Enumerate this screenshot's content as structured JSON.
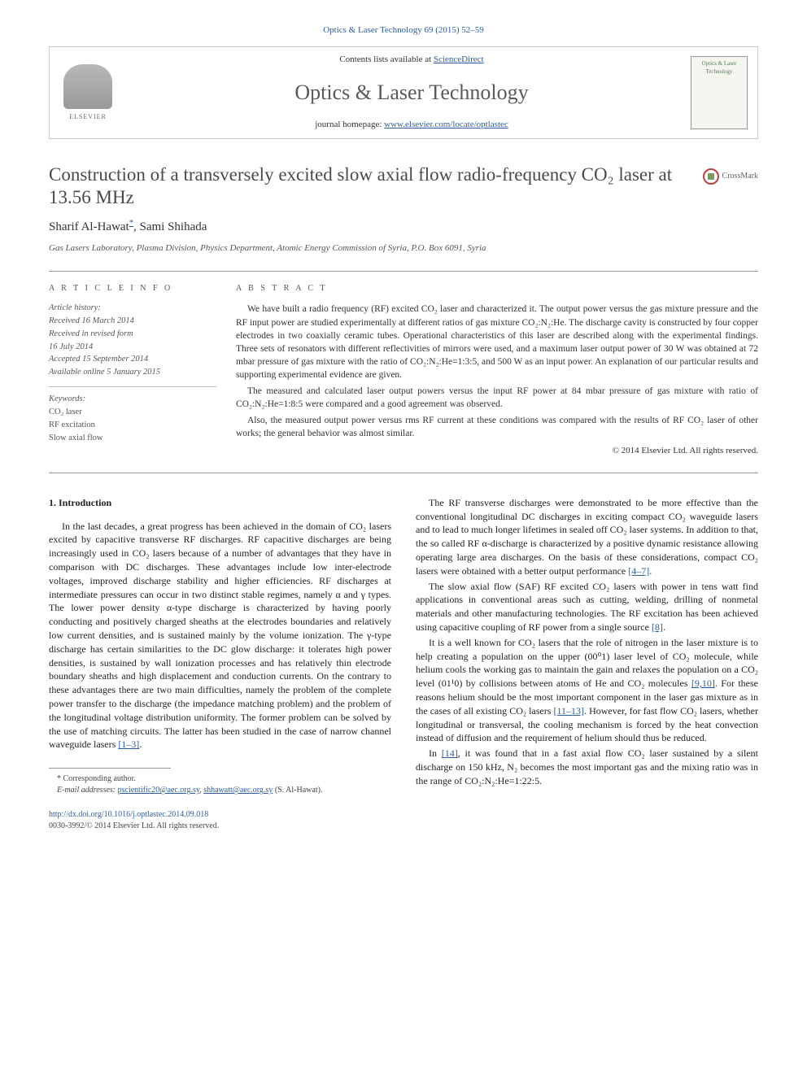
{
  "journal_ref": "Optics & Laser Technology 69 (2015) 52–59",
  "header": {
    "contents_prefix": "Contents lists available at ",
    "contents_link": "ScienceDirect",
    "journal_name": "Optics & Laser Technology",
    "homepage_prefix": "journal homepage: ",
    "homepage_link": "www.elsevier.com/locate/optlastec",
    "publisher": "ELSEVIER",
    "cover_text": "Optics & Laser Technology"
  },
  "crossmark": "CrossMark",
  "title": "Construction of a transversely excited slow axial flow radio-frequency CO₂ laser at 13.56 MHz",
  "authors": {
    "a1_name": "Sharif Al-Hawat",
    "a1_mark": "*",
    "sep": ", ",
    "a2_name": "Sami Shihada"
  },
  "affiliation": "Gas Lasers Laboratory, Plasma Division, Physics Department, Atomic Energy Commission of Syria, P.O. Box 6091, Syria",
  "meta": {
    "info_heading": "A R T I C L E   I N F O",
    "abstract_heading": "A B S T R A C T",
    "history_label": "Article history:",
    "history": {
      "received": "Received 16 March 2014",
      "revised1": "Received in revised form",
      "revised2": "16 July 2014",
      "accepted": "Accepted 15 September 2014",
      "online": "Available online 5 January 2015"
    },
    "keywords_label": "Keywords:",
    "keywords": {
      "k1": "CO₂ laser",
      "k2": "RF excitation",
      "k3": "Slow axial flow"
    }
  },
  "abstract": {
    "p1": "We have built a radio frequency (RF) excited CO₂ laser and characterized it. The output power versus the gas mixture pressure and the RF input power are studied experimentally at different ratios of gas mixture CO₂:N₂:He. The discharge cavity is constructed by four copper electrodes in two coaxially ceramic tubes. Operational characteristics of this laser are described along with the experimental findings. Three sets of resonators with different reflectivities of mirrors were used, and a maximum laser output power of 30 W was obtained at 72 mbar pressure of gas mixture with the ratio of CO₂:N₂:He=1:3:5, and 500 W as an input power. An explanation of our particular results and supporting experimental evidence are given.",
    "p2": "The measured and calculated laser output powers versus the input RF power at 84 mbar pressure of gas mixture with ratio of CO₂:N₂:He=1:8:5 were compared and a good agreement was observed.",
    "p3": "Also, the measured output power versus rms RF current at these conditions was compared with the results of RF CO₂ laser of other works; the general behavior was almost similar.",
    "copyright": "© 2014 Elsevier Ltd. All rights reserved."
  },
  "body": {
    "section_heading": "1.  Introduction",
    "p1a": "In the last decades, a great progress has been achieved in the domain of CO₂ lasers excited by capacitive transverse RF discharges. RF capacitive discharges are being increasingly used in CO₂ lasers because of a number of advantages that they have in comparison with DC discharges. These advantages include low inter-electrode voltages, improved discharge stability and higher efficiencies. RF discharges at intermediate pressures can occur in two distinct stable regimes, namely α and γ types. The lower power density α-type discharge is characterized by having poorly conducting and positively charged sheaths at the electrodes boundaries and relatively low current densities, and is sustained mainly by the volume ionization. The γ-type discharge has certain similarities to the DC glow discharge: it tolerates high power densities, is sustained by wall ionization processes and has relatively thin electrode boundary sheaths and high displacement and conduction currents. On the contrary to these advantages there are two main difficulties, namely the problem of the complete power transfer to the discharge (the impedance matching problem) and the problem of the longitudinal voltage distribution uniformity. The former problem can be solved by the use of matching circuits. The latter has been studied in the case of narrow channel waveguide lasers ",
    "p1_ref": "[1–3]",
    "p1b": ".",
    "p2a": "The RF transverse discharges were demonstrated to be more effective than the conventional longitudinal DC discharges in exciting compact CO₂ waveguide lasers and to lead to much longer lifetimes in sealed off CO₂ laser systems. In addition to that, the so called RF α-discharge is characterized by a positive dynamic resistance allowing operating large area discharges. On the basis of these considerations, compact CO₂ lasers were obtained with a better output performance ",
    "p2_ref": "[4–7]",
    "p2b": ".",
    "p3a": "The slow axial flow (SAF) RF excited CO₂ lasers with power in tens watt find applications in conventional areas such as cutting, welding, drilling of nonmetal materials and other manufacturing technologies. The RF excitation has been achieved using capacitive coupling of RF power from a single source ",
    "p3_ref": "[8]",
    "p3b": ".",
    "p4a": "It is a well known for CO₂ lasers that the role of nitrogen in the laser mixture is to help creating a population on the upper (00⁰1) laser level of CO₂ molecule, while helium cools the working gas to maintain the gain and relaxes the population on a CO₂ level (01¹0) by collisions between atoms of He and CO₂ molecules ",
    "p4_ref1": "[9,10]",
    "p4b": ". For these reasons helium should be the most important component in the laser gas mixture as in the cases of all existing CO₂ lasers ",
    "p4_ref2": "[11–13]",
    "p4c": ". However, for fast flow CO₂ lasers, whether longitudinal or transversal, the cooling mechanism is forced by the heat convection instead of diffusion and the requirement of helium should thus be reduced.",
    "p5a": "In ",
    "p5_ref": "[14]",
    "p5b": ", it was found that in a fast axial flow CO₂ laser sustained by a silent discharge on 150 kHz, N₂ becomes the most important gas and the mixing ratio was in the range of CO₂:N₂:He=1:22:5."
  },
  "footnotes": {
    "corr_label": "* Corresponding author.",
    "email_label": "E-mail addresses: ",
    "email1": "pscientific20@aec.org.sy",
    "email_sep": ", ",
    "email2": "shhawatt@aec.org.sy",
    "email_who": " (S. Al-Hawat)."
  },
  "doi": {
    "link": "http://dx.doi.org/10.1016/j.optlastec.2014.09.018",
    "issn_line": "0030-3992/© 2014 Elsevier Ltd. All rights reserved."
  },
  "colors": {
    "link": "#2d5c9e",
    "text": "#333333",
    "rule": "#999999"
  }
}
